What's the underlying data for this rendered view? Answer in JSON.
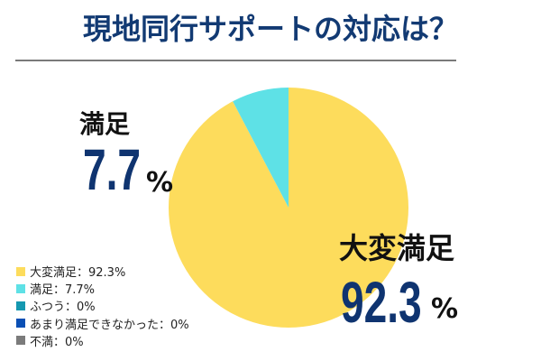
{
  "title": "現地同行サポートの対応は？",
  "colors": {
    "title": "#123a73",
    "rule": "#7a7a7a",
    "value": "#0f3470"
  },
  "callouts": {
    "satisfied": {
      "label": "満足",
      "value": "7.7",
      "unit": "%"
    },
    "very_satisfied": {
      "label": "大変満足",
      "value": "92.3",
      "unit": "%"
    }
  },
  "legend": [
    {
      "label": "大変満足：92.3%",
      "color": "#fddc5c"
    },
    {
      "label": "満足：7.7%",
      "color": "#5ee1e6"
    },
    {
      "label": "ふつう：0%",
      "color": "#1598b0"
    },
    {
      "label": "あまり満足できなかった：0%",
      "color": "#0a4fb4"
    },
    {
      "label": "不満：0%",
      "color": "#7b7b7b"
    }
  ],
  "chart_data": {
    "type": "pie",
    "title": "現地同行サポートの対応は？",
    "categories": [
      "大変満足",
      "満足",
      "ふつう",
      "あまり満足できなかった",
      "不満"
    ],
    "values": [
      92.3,
      7.7,
      0,
      0,
      0
    ],
    "unit": "%",
    "colors": [
      "#fddc5c",
      "#5ee1e6",
      "#1598b0",
      "#0a4fb4",
      "#7b7b7b"
    ],
    "start_angle_deg": 0,
    "direction": "clockwise",
    "legend_position": "bottom-left",
    "annotations": [
      {
        "text": "満足 7.7 %",
        "position": "upper-left"
      },
      {
        "text": "大変満足 92.3 %",
        "position": "lower-right"
      }
    ]
  }
}
